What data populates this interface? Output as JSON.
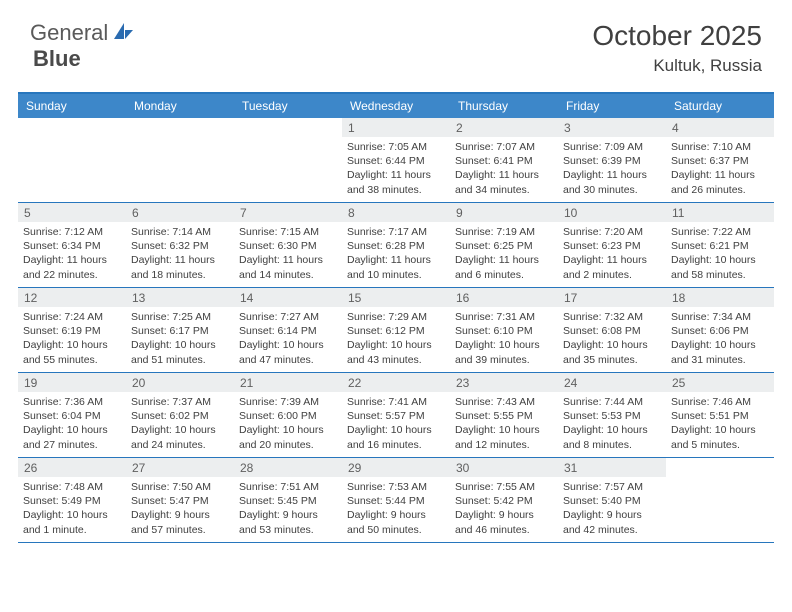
{
  "brand": {
    "part1": "General",
    "part2": "Blue"
  },
  "title": "October 2025",
  "location": "Kultuk, Russia",
  "weekdays": [
    "Sunday",
    "Monday",
    "Tuesday",
    "Wednesday",
    "Thursday",
    "Friday",
    "Saturday"
  ],
  "colors": {
    "header_bg": "#3d87c9",
    "border": "#2776bd",
    "daynum_bg": "#eceeef",
    "text": "#404040",
    "logo_accent": "#2a6bb0"
  },
  "weeks": [
    [
      {
        "day": "",
        "lines": []
      },
      {
        "day": "",
        "lines": []
      },
      {
        "day": "",
        "lines": []
      },
      {
        "day": "1",
        "lines": [
          "Sunrise: 7:05 AM",
          "Sunset: 6:44 PM",
          "Daylight: 11 hours",
          "and 38 minutes."
        ]
      },
      {
        "day": "2",
        "lines": [
          "Sunrise: 7:07 AM",
          "Sunset: 6:41 PM",
          "Daylight: 11 hours",
          "and 34 minutes."
        ]
      },
      {
        "day": "3",
        "lines": [
          "Sunrise: 7:09 AM",
          "Sunset: 6:39 PM",
          "Daylight: 11 hours",
          "and 30 minutes."
        ]
      },
      {
        "day": "4",
        "lines": [
          "Sunrise: 7:10 AM",
          "Sunset: 6:37 PM",
          "Daylight: 11 hours",
          "and 26 minutes."
        ]
      }
    ],
    [
      {
        "day": "5",
        "lines": [
          "Sunrise: 7:12 AM",
          "Sunset: 6:34 PM",
          "Daylight: 11 hours",
          "and 22 minutes."
        ]
      },
      {
        "day": "6",
        "lines": [
          "Sunrise: 7:14 AM",
          "Sunset: 6:32 PM",
          "Daylight: 11 hours",
          "and 18 minutes."
        ]
      },
      {
        "day": "7",
        "lines": [
          "Sunrise: 7:15 AM",
          "Sunset: 6:30 PM",
          "Daylight: 11 hours",
          "and 14 minutes."
        ]
      },
      {
        "day": "8",
        "lines": [
          "Sunrise: 7:17 AM",
          "Sunset: 6:28 PM",
          "Daylight: 11 hours",
          "and 10 minutes."
        ]
      },
      {
        "day": "9",
        "lines": [
          "Sunrise: 7:19 AM",
          "Sunset: 6:25 PM",
          "Daylight: 11 hours",
          "and 6 minutes."
        ]
      },
      {
        "day": "10",
        "lines": [
          "Sunrise: 7:20 AM",
          "Sunset: 6:23 PM",
          "Daylight: 11 hours",
          "and 2 minutes."
        ]
      },
      {
        "day": "11",
        "lines": [
          "Sunrise: 7:22 AM",
          "Sunset: 6:21 PM",
          "Daylight: 10 hours",
          "and 58 minutes."
        ]
      }
    ],
    [
      {
        "day": "12",
        "lines": [
          "Sunrise: 7:24 AM",
          "Sunset: 6:19 PM",
          "Daylight: 10 hours",
          "and 55 minutes."
        ]
      },
      {
        "day": "13",
        "lines": [
          "Sunrise: 7:25 AM",
          "Sunset: 6:17 PM",
          "Daylight: 10 hours",
          "and 51 minutes."
        ]
      },
      {
        "day": "14",
        "lines": [
          "Sunrise: 7:27 AM",
          "Sunset: 6:14 PM",
          "Daylight: 10 hours",
          "and 47 minutes."
        ]
      },
      {
        "day": "15",
        "lines": [
          "Sunrise: 7:29 AM",
          "Sunset: 6:12 PM",
          "Daylight: 10 hours",
          "and 43 minutes."
        ]
      },
      {
        "day": "16",
        "lines": [
          "Sunrise: 7:31 AM",
          "Sunset: 6:10 PM",
          "Daylight: 10 hours",
          "and 39 minutes."
        ]
      },
      {
        "day": "17",
        "lines": [
          "Sunrise: 7:32 AM",
          "Sunset: 6:08 PM",
          "Daylight: 10 hours",
          "and 35 minutes."
        ]
      },
      {
        "day": "18",
        "lines": [
          "Sunrise: 7:34 AM",
          "Sunset: 6:06 PM",
          "Daylight: 10 hours",
          "and 31 minutes."
        ]
      }
    ],
    [
      {
        "day": "19",
        "lines": [
          "Sunrise: 7:36 AM",
          "Sunset: 6:04 PM",
          "Daylight: 10 hours",
          "and 27 minutes."
        ]
      },
      {
        "day": "20",
        "lines": [
          "Sunrise: 7:37 AM",
          "Sunset: 6:02 PM",
          "Daylight: 10 hours",
          "and 24 minutes."
        ]
      },
      {
        "day": "21",
        "lines": [
          "Sunrise: 7:39 AM",
          "Sunset: 6:00 PM",
          "Daylight: 10 hours",
          "and 20 minutes."
        ]
      },
      {
        "day": "22",
        "lines": [
          "Sunrise: 7:41 AM",
          "Sunset: 5:57 PM",
          "Daylight: 10 hours",
          "and 16 minutes."
        ]
      },
      {
        "day": "23",
        "lines": [
          "Sunrise: 7:43 AM",
          "Sunset: 5:55 PM",
          "Daylight: 10 hours",
          "and 12 minutes."
        ]
      },
      {
        "day": "24",
        "lines": [
          "Sunrise: 7:44 AM",
          "Sunset: 5:53 PM",
          "Daylight: 10 hours",
          "and 8 minutes."
        ]
      },
      {
        "day": "25",
        "lines": [
          "Sunrise: 7:46 AM",
          "Sunset: 5:51 PM",
          "Daylight: 10 hours",
          "and 5 minutes."
        ]
      }
    ],
    [
      {
        "day": "26",
        "lines": [
          "Sunrise: 7:48 AM",
          "Sunset: 5:49 PM",
          "Daylight: 10 hours",
          "and 1 minute."
        ]
      },
      {
        "day": "27",
        "lines": [
          "Sunrise: 7:50 AM",
          "Sunset: 5:47 PM",
          "Daylight: 9 hours",
          "and 57 minutes."
        ]
      },
      {
        "day": "28",
        "lines": [
          "Sunrise: 7:51 AM",
          "Sunset: 5:45 PM",
          "Daylight: 9 hours",
          "and 53 minutes."
        ]
      },
      {
        "day": "29",
        "lines": [
          "Sunrise: 7:53 AM",
          "Sunset: 5:44 PM",
          "Daylight: 9 hours",
          "and 50 minutes."
        ]
      },
      {
        "day": "30",
        "lines": [
          "Sunrise: 7:55 AM",
          "Sunset: 5:42 PM",
          "Daylight: 9 hours",
          "and 46 minutes."
        ]
      },
      {
        "day": "31",
        "lines": [
          "Sunrise: 7:57 AM",
          "Sunset: 5:40 PM",
          "Daylight: 9 hours",
          "and 42 minutes."
        ]
      },
      {
        "day": "",
        "lines": []
      }
    ]
  ]
}
